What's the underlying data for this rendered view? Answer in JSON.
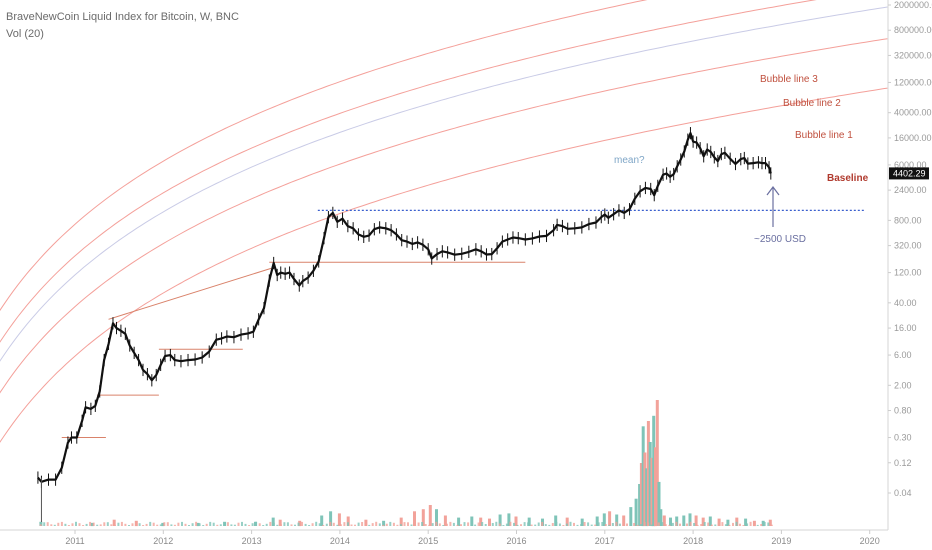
{
  "header": {
    "title": "BraveNewCoin Liquid Index for Bitcoin, W, BNC",
    "volume_label": "Vol (20)"
  },
  "colors": {
    "price_bar": "#111111",
    "bubble_lines": "#f4a09a",
    "mean_line": "#c9cbe6",
    "level_line": "#d9826a",
    "dotted_line": "#3a5fcd",
    "baseline_label": "#b03a2e",
    "bubble_label": "#c0503e",
    "mean_label": "#7fa6c7",
    "arrow": "#6a6fa0",
    "vol_up": "#7fc4b8",
    "vol_down": "#f2a29a",
    "axis_text": "#9a9a9a"
  },
  "chart_data": {
    "type": "line",
    "title": "BraveNewCoin Liquid Index for Bitcoin, W, BNC",
    "y_scale": "log",
    "ylim": [
      0.01,
      2000000
    ],
    "y_ticks": [
      "2000000.00",
      "800000.00",
      "320000.00",
      "120000.00",
      "40000.00",
      "16000.00",
      "6000.00",
      "2400.00",
      "800.00",
      "320.00",
      "120.00",
      "40.00",
      "16.00",
      "6.00",
      "2.00",
      "0.80",
      "0.30",
      "0.12",
      "0.04"
    ],
    "x_ticks": [
      "2011",
      "2012",
      "2013",
      "2014",
      "2015",
      "2016",
      "2017",
      "2018",
      "2019",
      "2020"
    ],
    "last_price": "4402.29",
    "price_series": [
      {
        "x": 2010.58,
        "y": 0.07
      },
      {
        "x": 2010.62,
        "y": 0.06
      },
      {
        "x": 2010.7,
        "y": 0.065
      },
      {
        "x": 2010.78,
        "y": 0.065
      },
      {
        "x": 2010.85,
        "y": 0.1
      },
      {
        "x": 2010.92,
        "y": 0.25
      },
      {
        "x": 2010.96,
        "y": 0.3
      },
      {
        "x": 2011.02,
        "y": 0.3
      },
      {
        "x": 2011.08,
        "y": 0.55
      },
      {
        "x": 2011.12,
        "y": 0.9
      },
      {
        "x": 2011.18,
        "y": 0.85
      },
      {
        "x": 2011.23,
        "y": 0.95
      },
      {
        "x": 2011.28,
        "y": 1.6
      },
      {
        "x": 2011.33,
        "y": 5.0
      },
      {
        "x": 2011.38,
        "y": 9.0
      },
      {
        "x": 2011.43,
        "y": 19.0
      },
      {
        "x": 2011.47,
        "y": 16.0
      },
      {
        "x": 2011.52,
        "y": 14.5
      },
      {
        "x": 2011.57,
        "y": 13.0
      },
      {
        "x": 2011.62,
        "y": 8.5
      },
      {
        "x": 2011.67,
        "y": 6.5
      },
      {
        "x": 2011.72,
        "y": 5.0
      },
      {
        "x": 2011.77,
        "y": 3.5
      },
      {
        "x": 2011.82,
        "y": 3.0
      },
      {
        "x": 2011.87,
        "y": 2.4
      },
      {
        "x": 2011.92,
        "y": 2.9
      },
      {
        "x": 2011.97,
        "y": 4.2
      },
      {
        "x": 2012.02,
        "y": 5.8
      },
      {
        "x": 2012.08,
        "y": 6.0
      },
      {
        "x": 2012.13,
        "y": 5.0
      },
      {
        "x": 2012.2,
        "y": 4.8
      },
      {
        "x": 2012.28,
        "y": 5.0
      },
      {
        "x": 2012.36,
        "y": 5.1
      },
      {
        "x": 2012.44,
        "y": 5.5
      },
      {
        "x": 2012.52,
        "y": 6.8
      },
      {
        "x": 2012.6,
        "y": 10.5
      },
      {
        "x": 2012.66,
        "y": 11.0
      },
      {
        "x": 2012.72,
        "y": 11.8
      },
      {
        "x": 2012.8,
        "y": 11.5
      },
      {
        "x": 2012.88,
        "y": 12.6
      },
      {
        "x": 2012.96,
        "y": 13.2
      },
      {
        "x": 2013.02,
        "y": 14.0
      },
      {
        "x": 2013.08,
        "y": 22.0
      },
      {
        "x": 2013.14,
        "y": 33.0
      },
      {
        "x": 2013.2,
        "y": 90.0
      },
      {
        "x": 2013.25,
        "y": 170.0
      },
      {
        "x": 2013.29,
        "y": 110.0
      },
      {
        "x": 2013.33,
        "y": 120.0
      },
      {
        "x": 2013.38,
        "y": 115.0
      },
      {
        "x": 2013.43,
        "y": 120.0
      },
      {
        "x": 2013.48,
        "y": 95.0
      },
      {
        "x": 2013.54,
        "y": 75.0
      },
      {
        "x": 2013.58,
        "y": 88.0
      },
      {
        "x": 2013.64,
        "y": 100.0
      },
      {
        "x": 2013.7,
        "y": 128.0
      },
      {
        "x": 2013.76,
        "y": 180.0
      },
      {
        "x": 2013.82,
        "y": 420.0
      },
      {
        "x": 2013.87,
        "y": 900.0
      },
      {
        "x": 2013.92,
        "y": 1050.0
      },
      {
        "x": 2013.97,
        "y": 760.0
      },
      {
        "x": 2014.03,
        "y": 850.0
      },
      {
        "x": 2014.09,
        "y": 650.0
      },
      {
        "x": 2014.15,
        "y": 600.0
      },
      {
        "x": 2014.21,
        "y": 480.0
      },
      {
        "x": 2014.27,
        "y": 440.0
      },
      {
        "x": 2014.33,
        "y": 460.0
      },
      {
        "x": 2014.39,
        "y": 580.0
      },
      {
        "x": 2014.45,
        "y": 620.0
      },
      {
        "x": 2014.52,
        "y": 600.0
      },
      {
        "x": 2014.58,
        "y": 560.0
      },
      {
        "x": 2014.64,
        "y": 480.0
      },
      {
        "x": 2014.7,
        "y": 390.0
      },
      {
        "x": 2014.76,
        "y": 370.0
      },
      {
        "x": 2014.82,
        "y": 340.0
      },
      {
        "x": 2014.88,
        "y": 360.0
      },
      {
        "x": 2014.94,
        "y": 330.0
      },
      {
        "x": 2015.0,
        "y": 280.0
      },
      {
        "x": 2015.04,
        "y": 200.0
      },
      {
        "x": 2015.1,
        "y": 235.0
      },
      {
        "x": 2015.16,
        "y": 260.0
      },
      {
        "x": 2015.22,
        "y": 250.0
      },
      {
        "x": 2015.3,
        "y": 230.0
      },
      {
        "x": 2015.38,
        "y": 238.0
      },
      {
        "x": 2015.46,
        "y": 255.0
      },
      {
        "x": 2015.54,
        "y": 280.0
      },
      {
        "x": 2015.6,
        "y": 260.0
      },
      {
        "x": 2015.66,
        "y": 232.0
      },
      {
        "x": 2015.72,
        "y": 235.0
      },
      {
        "x": 2015.78,
        "y": 290.0
      },
      {
        "x": 2015.84,
        "y": 370.0
      },
      {
        "x": 2015.9,
        "y": 400.0
      },
      {
        "x": 2015.96,
        "y": 430.0
      },
      {
        "x": 2016.02,
        "y": 420.0
      },
      {
        "x": 2016.1,
        "y": 400.0
      },
      {
        "x": 2016.18,
        "y": 415.0
      },
      {
        "x": 2016.26,
        "y": 445.0
      },
      {
        "x": 2016.34,
        "y": 455.0
      },
      {
        "x": 2016.42,
        "y": 560.0
      },
      {
        "x": 2016.46,
        "y": 680.0
      },
      {
        "x": 2016.52,
        "y": 650.0
      },
      {
        "x": 2016.58,
        "y": 590.0
      },
      {
        "x": 2016.66,
        "y": 600.0
      },
      {
        "x": 2016.74,
        "y": 620.0
      },
      {
        "x": 2016.82,
        "y": 700.0
      },
      {
        "x": 2016.9,
        "y": 740.0
      },
      {
        "x": 2016.96,
        "y": 900.0
      },
      {
        "x": 2017.0,
        "y": 990.0
      },
      {
        "x": 2017.04,
        "y": 880.0
      },
      {
        "x": 2017.1,
        "y": 1000.0
      },
      {
        "x": 2017.16,
        "y": 1150.0
      },
      {
        "x": 2017.22,
        "y": 1050.0
      },
      {
        "x": 2017.28,
        "y": 1200.0
      },
      {
        "x": 2017.34,
        "y": 1750.0
      },
      {
        "x": 2017.4,
        "y": 2300.0
      },
      {
        "x": 2017.46,
        "y": 2600.0
      },
      {
        "x": 2017.52,
        "y": 2500.0
      },
      {
        "x": 2017.56,
        "y": 2000.0
      },
      {
        "x": 2017.6,
        "y": 2800.0
      },
      {
        "x": 2017.66,
        "y": 4200.0
      },
      {
        "x": 2017.7,
        "y": 4400.0
      },
      {
        "x": 2017.74,
        "y": 3900.0
      },
      {
        "x": 2017.78,
        "y": 4300.0
      },
      {
        "x": 2017.82,
        "y": 5700.0
      },
      {
        "x": 2017.86,
        "y": 7300.0
      },
      {
        "x": 2017.9,
        "y": 9800.0
      },
      {
        "x": 2017.94,
        "y": 15000.0
      },
      {
        "x": 2017.97,
        "y": 19000.0
      },
      {
        "x": 2018.0,
        "y": 14000.0
      },
      {
        "x": 2018.04,
        "y": 13500.0
      },
      {
        "x": 2018.08,
        "y": 11000.0
      },
      {
        "x": 2018.12,
        "y": 8200.0
      },
      {
        "x": 2018.16,
        "y": 10500.0
      },
      {
        "x": 2018.2,
        "y": 9600.0
      },
      {
        "x": 2018.24,
        "y": 7900.0
      },
      {
        "x": 2018.28,
        "y": 6900.0
      },
      {
        "x": 2018.32,
        "y": 8900.0
      },
      {
        "x": 2018.36,
        "y": 9300.0
      },
      {
        "x": 2018.42,
        "y": 7500.0
      },
      {
        "x": 2018.48,
        "y": 6200.0
      },
      {
        "x": 2018.54,
        "y": 7400.0
      },
      {
        "x": 2018.58,
        "y": 7700.0
      },
      {
        "x": 2018.62,
        "y": 6300.0
      },
      {
        "x": 2018.68,
        "y": 6400.0
      },
      {
        "x": 2018.74,
        "y": 6600.0
      },
      {
        "x": 2018.78,
        "y": 6400.0
      },
      {
        "x": 2018.82,
        "y": 6400.0
      },
      {
        "x": 2018.86,
        "y": 5500.0
      },
      {
        "x": 2018.88,
        "y": 4402.29
      }
    ],
    "volume_series": [
      {
        "x": 2010.62,
        "v": 4,
        "up": true
      },
      {
        "x": 2011.2,
        "v": 3,
        "up": true
      },
      {
        "x": 2011.45,
        "v": 6,
        "up": false
      },
      {
        "x": 2011.7,
        "v": 5,
        "up": false
      },
      {
        "x": 2012.0,
        "v": 3,
        "up": true
      },
      {
        "x": 2012.4,
        "v": 3,
        "up": true
      },
      {
        "x": 2012.7,
        "v": 4,
        "up": true
      },
      {
        "x": 2013.05,
        "v": 4,
        "up": true
      },
      {
        "x": 2013.25,
        "v": 8,
        "up": true
      },
      {
        "x": 2013.33,
        "v": 6,
        "up": false
      },
      {
        "x": 2013.55,
        "v": 5,
        "up": false
      },
      {
        "x": 2013.8,
        "v": 10,
        "up": true
      },
      {
        "x": 2013.9,
        "v": 14,
        "up": true
      },
      {
        "x": 2014.0,
        "v": 12,
        "up": false
      },
      {
        "x": 2014.1,
        "v": 9,
        "up": false
      },
      {
        "x": 2014.3,
        "v": 6,
        "up": false
      },
      {
        "x": 2014.5,
        "v": 5,
        "up": true
      },
      {
        "x": 2014.7,
        "v": 8,
        "up": false
      },
      {
        "x": 2014.85,
        "v": 14,
        "up": false
      },
      {
        "x": 2014.95,
        "v": 16,
        "up": false
      },
      {
        "x": 2015.03,
        "v": 20,
        "up": false
      },
      {
        "x": 2015.1,
        "v": 16,
        "up": true
      },
      {
        "x": 2015.2,
        "v": 10,
        "up": false
      },
      {
        "x": 2015.35,
        "v": 8,
        "up": true
      },
      {
        "x": 2015.5,
        "v": 9,
        "up": true
      },
      {
        "x": 2015.6,
        "v": 8,
        "up": false
      },
      {
        "x": 2015.7,
        "v": 7,
        "up": false
      },
      {
        "x": 2015.82,
        "v": 11,
        "up": true
      },
      {
        "x": 2015.92,
        "v": 12,
        "up": true
      },
      {
        "x": 2016.0,
        "v": 9,
        "up": false
      },
      {
        "x": 2016.15,
        "v": 8,
        "up": true
      },
      {
        "x": 2016.3,
        "v": 7,
        "up": true
      },
      {
        "x": 2016.45,
        "v": 10,
        "up": true
      },
      {
        "x": 2016.58,
        "v": 8,
        "up": false
      },
      {
        "x": 2016.75,
        "v": 7,
        "up": true
      },
      {
        "x": 2016.92,
        "v": 9,
        "up": true
      },
      {
        "x": 2017.0,
        "v": 12,
        "up": true
      },
      {
        "x": 2017.06,
        "v": 14,
        "up": false
      },
      {
        "x": 2017.14,
        "v": 11,
        "up": true
      },
      {
        "x": 2017.22,
        "v": 10,
        "up": false
      },
      {
        "x": 2017.3,
        "v": 18,
        "up": true
      },
      {
        "x": 2017.36,
        "v": 26,
        "up": true
      },
      {
        "x": 2017.4,
        "v": 40,
        "up": true
      },
      {
        "x": 2017.42,
        "v": 60,
        "up": false
      },
      {
        "x": 2017.44,
        "v": 95,
        "up": true
      },
      {
        "x": 2017.46,
        "v": 70,
        "up": false
      },
      {
        "x": 2017.48,
        "v": 55,
        "up": true
      },
      {
        "x": 2017.5,
        "v": 100,
        "up": false
      },
      {
        "x": 2017.52,
        "v": 80,
        "up": true
      },
      {
        "x": 2017.54,
        "v": 65,
        "up": false
      },
      {
        "x": 2017.56,
        "v": 105,
        "up": true
      },
      {
        "x": 2017.58,
        "v": 75,
        "up": false
      },
      {
        "x": 2017.6,
        "v": 120,
        "up": false
      },
      {
        "x": 2017.62,
        "v": 42,
        "up": true
      },
      {
        "x": 2017.64,
        "v": 16,
        "up": true
      },
      {
        "x": 2017.68,
        "v": 10,
        "up": false
      },
      {
        "x": 2017.75,
        "v": 8,
        "up": true
      },
      {
        "x": 2017.82,
        "v": 9,
        "up": true
      },
      {
        "x": 2017.9,
        "v": 10,
        "up": true
      },
      {
        "x": 2017.97,
        "v": 12,
        "up": true
      },
      {
        "x": 2018.04,
        "v": 10,
        "up": false
      },
      {
        "x": 2018.12,
        "v": 8,
        "up": false
      },
      {
        "x": 2018.2,
        "v": 9,
        "up": true
      },
      {
        "x": 2018.3,
        "v": 7,
        "up": false
      },
      {
        "x": 2018.4,
        "v": 6,
        "up": true
      },
      {
        "x": 2018.5,
        "v": 8,
        "up": false
      },
      {
        "x": 2018.6,
        "v": 7,
        "up": true
      },
      {
        "x": 2018.7,
        "v": 5,
        "up": false
      },
      {
        "x": 2018.8,
        "v": 5,
        "up": true
      },
      {
        "x": 2018.88,
        "v": 6,
        "up": false
      }
    ],
    "annotations": {
      "bubble_line_3": "Bubble line 3",
      "bubble_line_2": "Bubble line 2",
      "bubble_line_1": "Bubble line 1",
      "baseline": "Baseline",
      "mean": "mean?",
      "support_level": "~2500 USD"
    },
    "support_level_usd": 2500
  }
}
